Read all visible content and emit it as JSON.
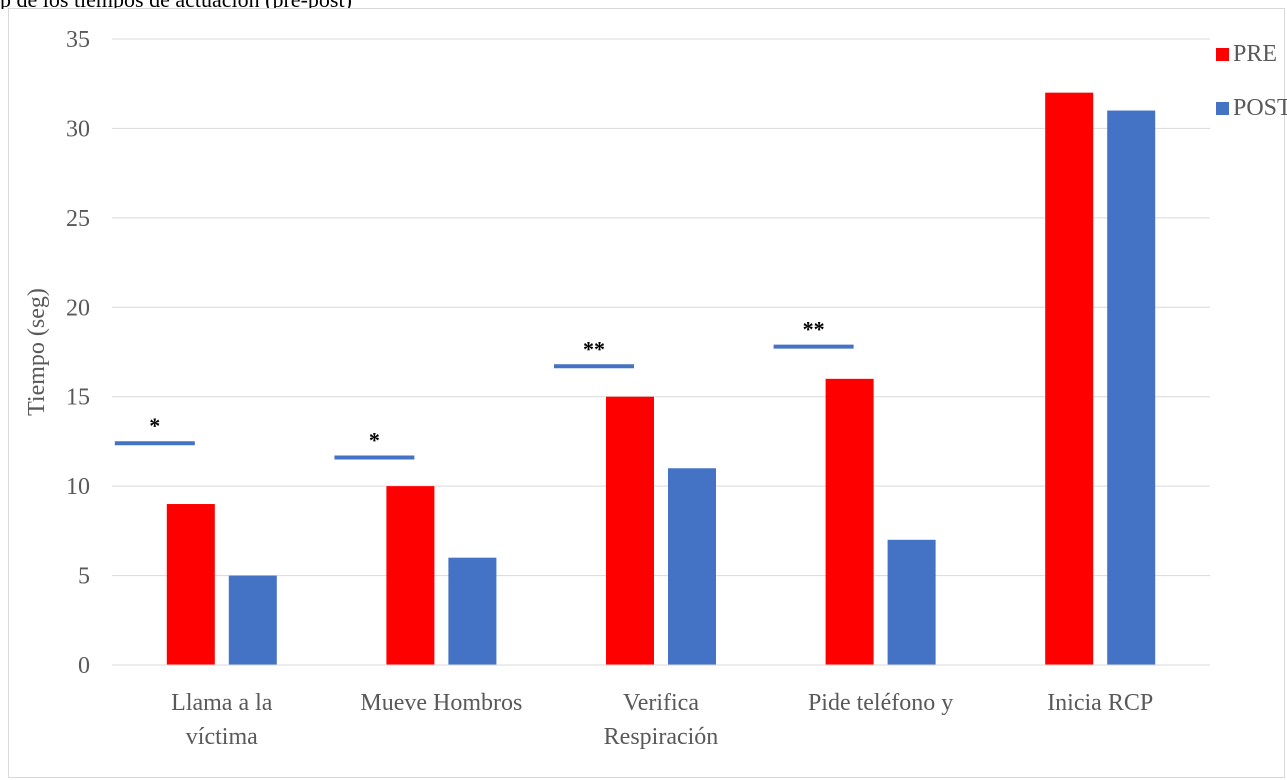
{
  "caption": "p de los tiempos de actuación (pre-post)",
  "chart_data": {
    "type": "bar",
    "title": "",
    "xlabel": "",
    "ylabel": "Tiempo (seg)",
    "ylim": [
      0,
      35
    ],
    "yticks": [
      0,
      5,
      10,
      15,
      20,
      25,
      30,
      35
    ],
    "grid": true,
    "legend_position": "top-right",
    "categories": [
      [
        "Llama a la",
        "víctima"
      ],
      [
        "Mueve Hombros"
      ],
      [
        "Verifica",
        "Respiración"
      ],
      [
        "Pide teléfono y"
      ],
      [
        "Inicia RCP"
      ]
    ],
    "series": [
      {
        "name": "PRE",
        "color": "#ff0000",
        "values": [
          9,
          10,
          15,
          16,
          32
        ]
      },
      {
        "name": "POST",
        "color": "#4472c4",
        "values": [
          5,
          6,
          11,
          7,
          31
        ]
      }
    ],
    "significance": [
      {
        "category_index": 0,
        "label": "*",
        "value": 12.4
      },
      {
        "category_index": 1,
        "label": "*",
        "value": 11.6
      },
      {
        "category_index": 2,
        "label": "**",
        "value": 16.7
      },
      {
        "category_index": 3,
        "label": "**",
        "value": 17.8
      }
    ],
    "significance_color": "#4472c4"
  }
}
